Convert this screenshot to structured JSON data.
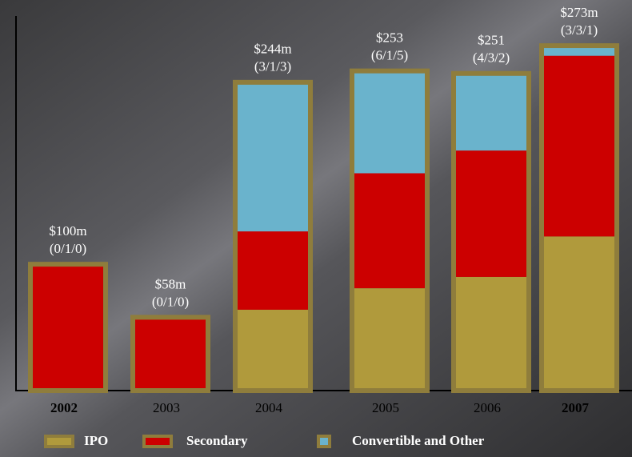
{
  "chart_data": {
    "type": "stacked_bar",
    "categories": [
      "2002",
      "2003",
      "2004",
      "2005",
      "2006",
      "2007"
    ],
    "bold_categories": [
      0,
      5
    ],
    "series": [
      {
        "name": "IPO",
        "color": "#b09a3c",
        "values": [
          0,
          0,
          64,
          81,
          90,
          122
        ]
      },
      {
        "name": "Secondary",
        "color": "#cc0000",
        "values": [
          100,
          58,
          62,
          91,
          100,
          143
        ]
      },
      {
        "name": "Convertible and Other",
        "color": "#6ab3cc",
        "values": [
          0,
          0,
          118,
          81,
          61,
          8
        ]
      }
    ],
    "annotations": [
      {
        "total": "$100m",
        "counts": "(0/1/0)"
      },
      {
        "total": "$58m",
        "counts": "(0/1/0)"
      },
      {
        "total": "$244m",
        "counts": "(3/1/3)"
      },
      {
        "total": "$253",
        "counts": "(6/1/5)"
      },
      {
        "total": "$251",
        "counts": "(4/3/2)"
      },
      {
        "total": "$273m",
        "counts": "(3/3/1)"
      }
    ],
    "ylim": [
      0,
      280
    ],
    "outline_color": "#8f7d3c"
  }
}
